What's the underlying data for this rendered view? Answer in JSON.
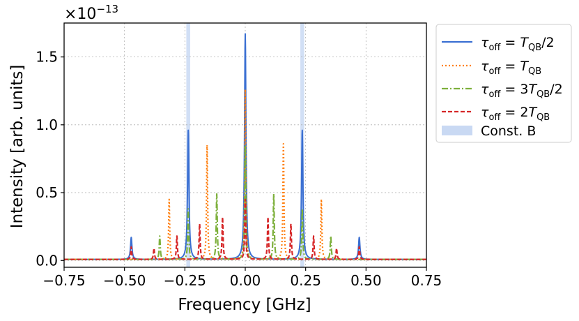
{
  "chart_data": {
    "type": "line",
    "xlabel": "Frequency [GHz]",
    "ylabel": "Intensity [arb. units]",
    "y_scale_factor": "×10",
    "y_scale_exponent": "−13",
    "xlim": [
      -0.75,
      0.75
    ],
    "ylim": [
      -0.05,
      1.75
    ],
    "xticks": [
      "−0.75",
      "−0.50",
      "−0.25",
      "0.00",
      "0.25",
      "0.50",
      "0.75"
    ],
    "xtick_values": [
      -0.75,
      -0.5,
      -0.25,
      0.0,
      0.25,
      0.5,
      0.75
    ],
    "yticks": [
      "0.0",
      "0.5",
      "1.0",
      "1.5"
    ],
    "ytick_values": [
      0.0,
      0.5,
      1.0,
      1.5
    ],
    "grid": true,
    "legend_position": "outside right, top",
    "shaded_bands": {
      "name": "Const. B",
      "color": "#c9d9f3",
      "centers": [
        -0.236,
        0.236
      ],
      "halfwidth": 0.008
    },
    "series": [
      {
        "name": "τoff = TQB/2",
        "label_parts": [
          "τ",
          "off",
          " = T",
          "QB",
          "/2"
        ],
        "color": "#3a6fd2",
        "style": "solid",
        "baseline": 0.008,
        "width": 0.0035,
        "peaks": [
          [
            -0.472,
            0.17
          ],
          [
            -0.236,
            0.96
          ],
          [
            0.0,
            1.67
          ],
          [
            0.236,
            0.96
          ],
          [
            0.472,
            0.17
          ]
        ]
      },
      {
        "name": "τoff = TQB",
        "label_parts": [
          "τ",
          "off",
          " = T",
          "QB",
          ""
        ],
        "color": "#ff7f0e",
        "style": "dotted",
        "baseline": 0.008,
        "width": 0.0025,
        "peaks": [
          [
            -0.315,
            0.45
          ],
          [
            -0.158,
            0.85
          ],
          [
            0.0,
            1.26
          ],
          [
            0.158,
            0.86
          ],
          [
            0.315,
            0.45
          ]
        ]
      },
      {
        "name": "τoff = 3TQB/2",
        "label_parts": [
          "τ",
          "off",
          " = 3T",
          "QB",
          "/2"
        ],
        "color": "#7db03c",
        "style": "dashdot",
        "baseline": 0.008,
        "width": 0.0025,
        "peaks": [
          [
            -0.354,
            0.18
          ],
          [
            -0.236,
            0.38
          ],
          [
            -0.118,
            0.49
          ],
          [
            0.0,
            0.85
          ],
          [
            0.118,
            0.49
          ],
          [
            0.236,
            0.38
          ],
          [
            0.354,
            0.18
          ]
        ]
      },
      {
        "name": "τoff = 2TQB",
        "label_parts": [
          "τ",
          "off",
          " = 2T",
          "QB",
          ""
        ],
        "color": "#d62728",
        "style": "dashed",
        "baseline": 0.008,
        "width": 0.0025,
        "peaks": [
          [
            -0.472,
            0.1
          ],
          [
            -0.378,
            0.09
          ],
          [
            -0.283,
            0.18
          ],
          [
            -0.189,
            0.27
          ],
          [
            -0.094,
            0.32
          ],
          [
            0.0,
            0.45
          ],
          [
            0.094,
            0.32
          ],
          [
            0.189,
            0.27
          ],
          [
            0.283,
            0.18
          ],
          [
            0.378,
            0.09
          ],
          [
            0.472,
            0.1
          ]
        ]
      }
    ]
  }
}
